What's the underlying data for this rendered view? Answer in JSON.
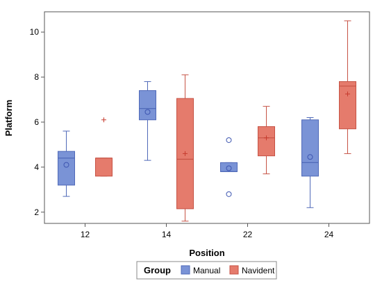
{
  "chart_data": {
    "type": "box",
    "xlabel": "Position",
    "ylabel": "Platform",
    "ylim": [
      1.5,
      10.9
    ],
    "yticks": [
      2,
      4,
      6,
      8,
      10
    ],
    "categories": [
      "12",
      "14",
      "22",
      "24"
    ],
    "grid": false,
    "legend": {
      "title": "Group",
      "placement": "bottom"
    },
    "series": [
      {
        "name": "Manual",
        "color": "#7a93d6",
        "edge_color": "#4f69b8",
        "boxes": [
          {
            "category": "12",
            "min": 2.7,
            "q1": 3.2,
            "median": 4.4,
            "q3": 4.7,
            "max": 5.6,
            "mean": 4.1,
            "outliers": []
          },
          {
            "category": "14",
            "min": 4.3,
            "q1": 6.1,
            "median": 6.6,
            "q3": 7.4,
            "max": 7.8,
            "mean": 6.45,
            "outliers": []
          },
          {
            "category": "22",
            "min": 3.8,
            "q1": 3.8,
            "median": 3.8,
            "q3": 4.2,
            "max": 4.2,
            "mean": 3.95,
            "outliers": [
              5.2,
              2.8
            ]
          },
          {
            "category": "24",
            "min": 2.2,
            "q1": 3.6,
            "median": 4.2,
            "q3": 6.1,
            "max": 6.2,
            "mean": 4.45,
            "outliers": []
          }
        ]
      },
      {
        "name": "Navident",
        "color": "#e57b6c",
        "edge_color": "#c65244",
        "boxes": [
          {
            "category": "12",
            "min": 3.6,
            "q1": 3.6,
            "median": 4.4,
            "q3": 4.4,
            "max": 4.4,
            "mean": 6.1,
            "outliers": []
          },
          {
            "category": "14",
            "min": 1.6,
            "q1": 2.15,
            "median": 4.35,
            "q3": 7.05,
            "max": 8.1,
            "mean": 4.6,
            "outliers": []
          },
          {
            "category": "22",
            "min": 3.7,
            "q1": 4.5,
            "median": 5.3,
            "q3": 5.8,
            "max": 6.7,
            "mean": 5.3,
            "outliers": []
          },
          {
            "category": "24",
            "min": 4.6,
            "q1": 5.7,
            "median": 7.6,
            "q3": 7.8,
            "max": 10.5,
            "mean": 7.25,
            "outliers": []
          }
        ]
      }
    ]
  }
}
